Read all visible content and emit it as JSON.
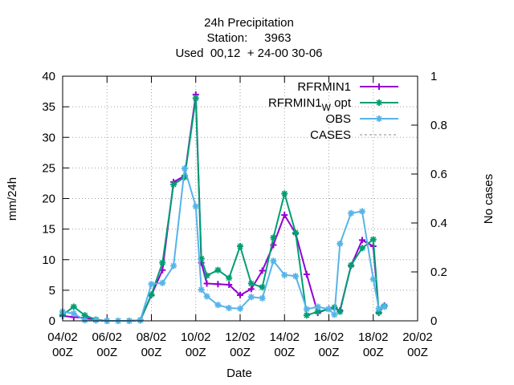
{
  "chart_data": {
    "type": "line",
    "title_lines": [
      "24h Precipitation",
      "Station:     3963",
      "Used  00,12  + 24-00 30-06"
    ],
    "xlabel": "Date",
    "ylabel": "mm/24h",
    "y2label": "No cases",
    "xlim": [
      0,
      16
    ],
    "ylim": [
      0,
      40
    ],
    "y2lim": [
      0,
      1
    ],
    "x_unit": "days since 04/02 00Z",
    "x_ticks": [
      {
        "x": 0,
        "line1": "04/02",
        "line2": "00Z"
      },
      {
        "x": 2,
        "line1": "06/02",
        "line2": "00Z"
      },
      {
        "x": 4,
        "line1": "08/02",
        "line2": "00Z"
      },
      {
        "x": 6,
        "line1": "10/02",
        "line2": "00Z"
      },
      {
        "x": 8,
        "line1": "12/02",
        "line2": "00Z"
      },
      {
        "x": 10,
        "line1": "14/02",
        "line2": "00Z"
      },
      {
        "x": 12,
        "line1": "16/02",
        "line2": "00Z"
      },
      {
        "x": 14,
        "line1": "18/02",
        "line2": "00Z"
      },
      {
        "x": 16,
        "line1": "20/02",
        "line2": "00Z"
      }
    ],
    "y_ticks": [
      0,
      5,
      10,
      15,
      20,
      25,
      30,
      35,
      40
    ],
    "y2_ticks": [
      {
        "v": 0,
        "label": "0"
      },
      {
        "v": 0.2,
        "label": "0.2"
      },
      {
        "v": 0.4,
        "label": "0.4"
      },
      {
        "v": 0.6,
        "label": "0.6"
      },
      {
        "v": 0.8,
        "label": "0.8"
      },
      {
        "v": 1,
        "label": "1"
      }
    ],
    "legend_position": "top-right",
    "series": [
      {
        "name": "RFRMIN1",
        "color": "#9400d3",
        "marker": "plus",
        "x": [
          0.0,
          0.5,
          1.0,
          1.5,
          2.0,
          2.5,
          3.0,
          3.5,
          4.0,
          4.5,
          5.0,
          5.5,
          6.0,
          6.25,
          6.5,
          7.0,
          7.5,
          8.0,
          8.5,
          9.0,
          9.5,
          10.0,
          10.5,
          11.0,
          11.5,
          12.0,
          12.25,
          12.5,
          13.0,
          13.5,
          14.0,
          14.25,
          14.5
        ],
        "y": [
          0.8,
          0.6,
          0.5,
          0.1,
          0.0,
          0.0,
          0.0,
          0.1,
          4.2,
          8.3,
          22.7,
          23.7,
          37.0,
          9.5,
          6.1,
          6.0,
          5.9,
          4.2,
          5.2,
          8.2,
          12.4,
          17.3,
          14.3,
          7.6,
          1.3,
          2.0,
          2.1,
          1.7,
          9.0,
          13.2,
          12.2,
          1.3,
          2.5
        ]
      },
      {
        "name": "RFRMIN1_W opt",
        "color": "#009e73",
        "marker": "star",
        "x": [
          0.0,
          0.5,
          1.0,
          1.5,
          2.0,
          2.5,
          3.0,
          3.5,
          4.0,
          4.5,
          5.0,
          5.5,
          6.0,
          6.25,
          6.5,
          7.0,
          7.5,
          8.0,
          8.5,
          9.0,
          9.5,
          10.0,
          10.5,
          11.0,
          11.5,
          12.0,
          12.25,
          12.5,
          13.0,
          13.5,
          14.0,
          14.25,
          14.5
        ],
        "y": [
          1.0,
          2.3,
          0.9,
          0.2,
          0.0,
          0.0,
          0.0,
          0.1,
          4.3,
          9.5,
          22.3,
          23.5,
          36.4,
          10.2,
          7.4,
          8.3,
          7.0,
          12.2,
          6.1,
          5.5,
          13.6,
          20.8,
          14.4,
          0.9,
          1.5,
          1.9,
          2.2,
          1.5,
          9.1,
          11.9,
          13.3,
          1.4,
          2.4
        ]
      },
      {
        "name": "OBS",
        "color": "#56b4e9",
        "marker": "star",
        "x": [
          0.0,
          0.5,
          1.0,
          1.5,
          2.0,
          2.5,
          3.0,
          3.5,
          4.0,
          4.5,
          5.0,
          5.5,
          6.0,
          6.25,
          6.5,
          7.0,
          7.5,
          8.0,
          8.5,
          9.0,
          9.5,
          10.0,
          10.5,
          11.0,
          11.5,
          12.0,
          12.25,
          12.5,
          13.0,
          13.5,
          14.0,
          14.25,
          14.5
        ],
        "y": [
          1.5,
          1.2,
          0.1,
          0.1,
          0.0,
          0.0,
          0.0,
          0.1,
          6.0,
          6.2,
          9.0,
          24.9,
          18.7,
          5.1,
          4.0,
          2.6,
          2.1,
          2.0,
          3.9,
          3.7,
          9.8,
          7.5,
          7.3,
          1.9,
          2.3,
          1.9,
          1.0,
          12.6,
          17.6,
          17.9,
          6.8,
          2.0,
          2.3
        ]
      }
    ],
    "cases_series": {
      "name": "CASES",
      "color": "#888888",
      "style": "dashed"
    }
  }
}
